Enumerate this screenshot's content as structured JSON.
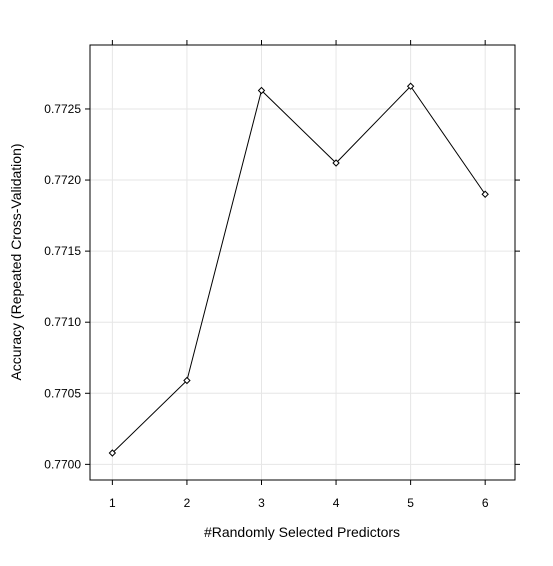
{
  "chart_data": {
    "type": "line",
    "title": "",
    "xlabel": "#Randomly Selected Predictors",
    "ylabel": "Accuracy (Repeated Cross-Validation)",
    "x": [
      1,
      2,
      3,
      4,
      5,
      6
    ],
    "x_ticks": [
      "1",
      "2",
      "3",
      "4",
      "5",
      "6"
    ],
    "y_ticks": [
      "0.7700",
      "0.7705",
      "0.7710",
      "0.7715",
      "0.7720",
      "0.7725"
    ],
    "y_tick_values": [
      0.77,
      0.7705,
      0.771,
      0.7715,
      0.772,
      0.7725
    ],
    "xlim": [
      0.7,
      6.4
    ],
    "ylim": [
      0.76989,
      0.77295
    ],
    "grid": true,
    "marker": "open-diamond",
    "series": [
      {
        "values": [
          0.77008,
          0.77059,
          0.77263,
          0.77212,
          0.77266,
          0.7719
        ]
      }
    ],
    "colors": {
      "line": "#000000",
      "grid": "#e6e6e6",
      "frame": "#000000"
    }
  }
}
